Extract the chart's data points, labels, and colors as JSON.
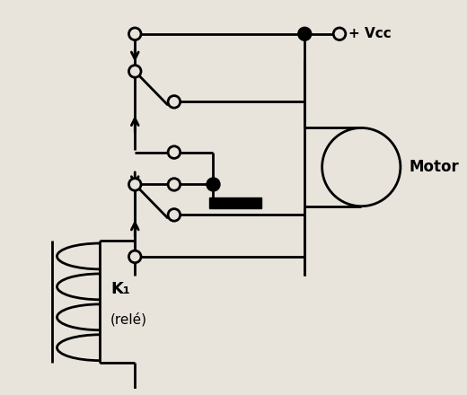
{
  "bg_color": "#e8e4dc",
  "line_color": "#000000",
  "vcc_label": "+ Vcc",
  "motor_label": "Motor",
  "k1_label": "K₁",
  "rele_label": "(relé)"
}
